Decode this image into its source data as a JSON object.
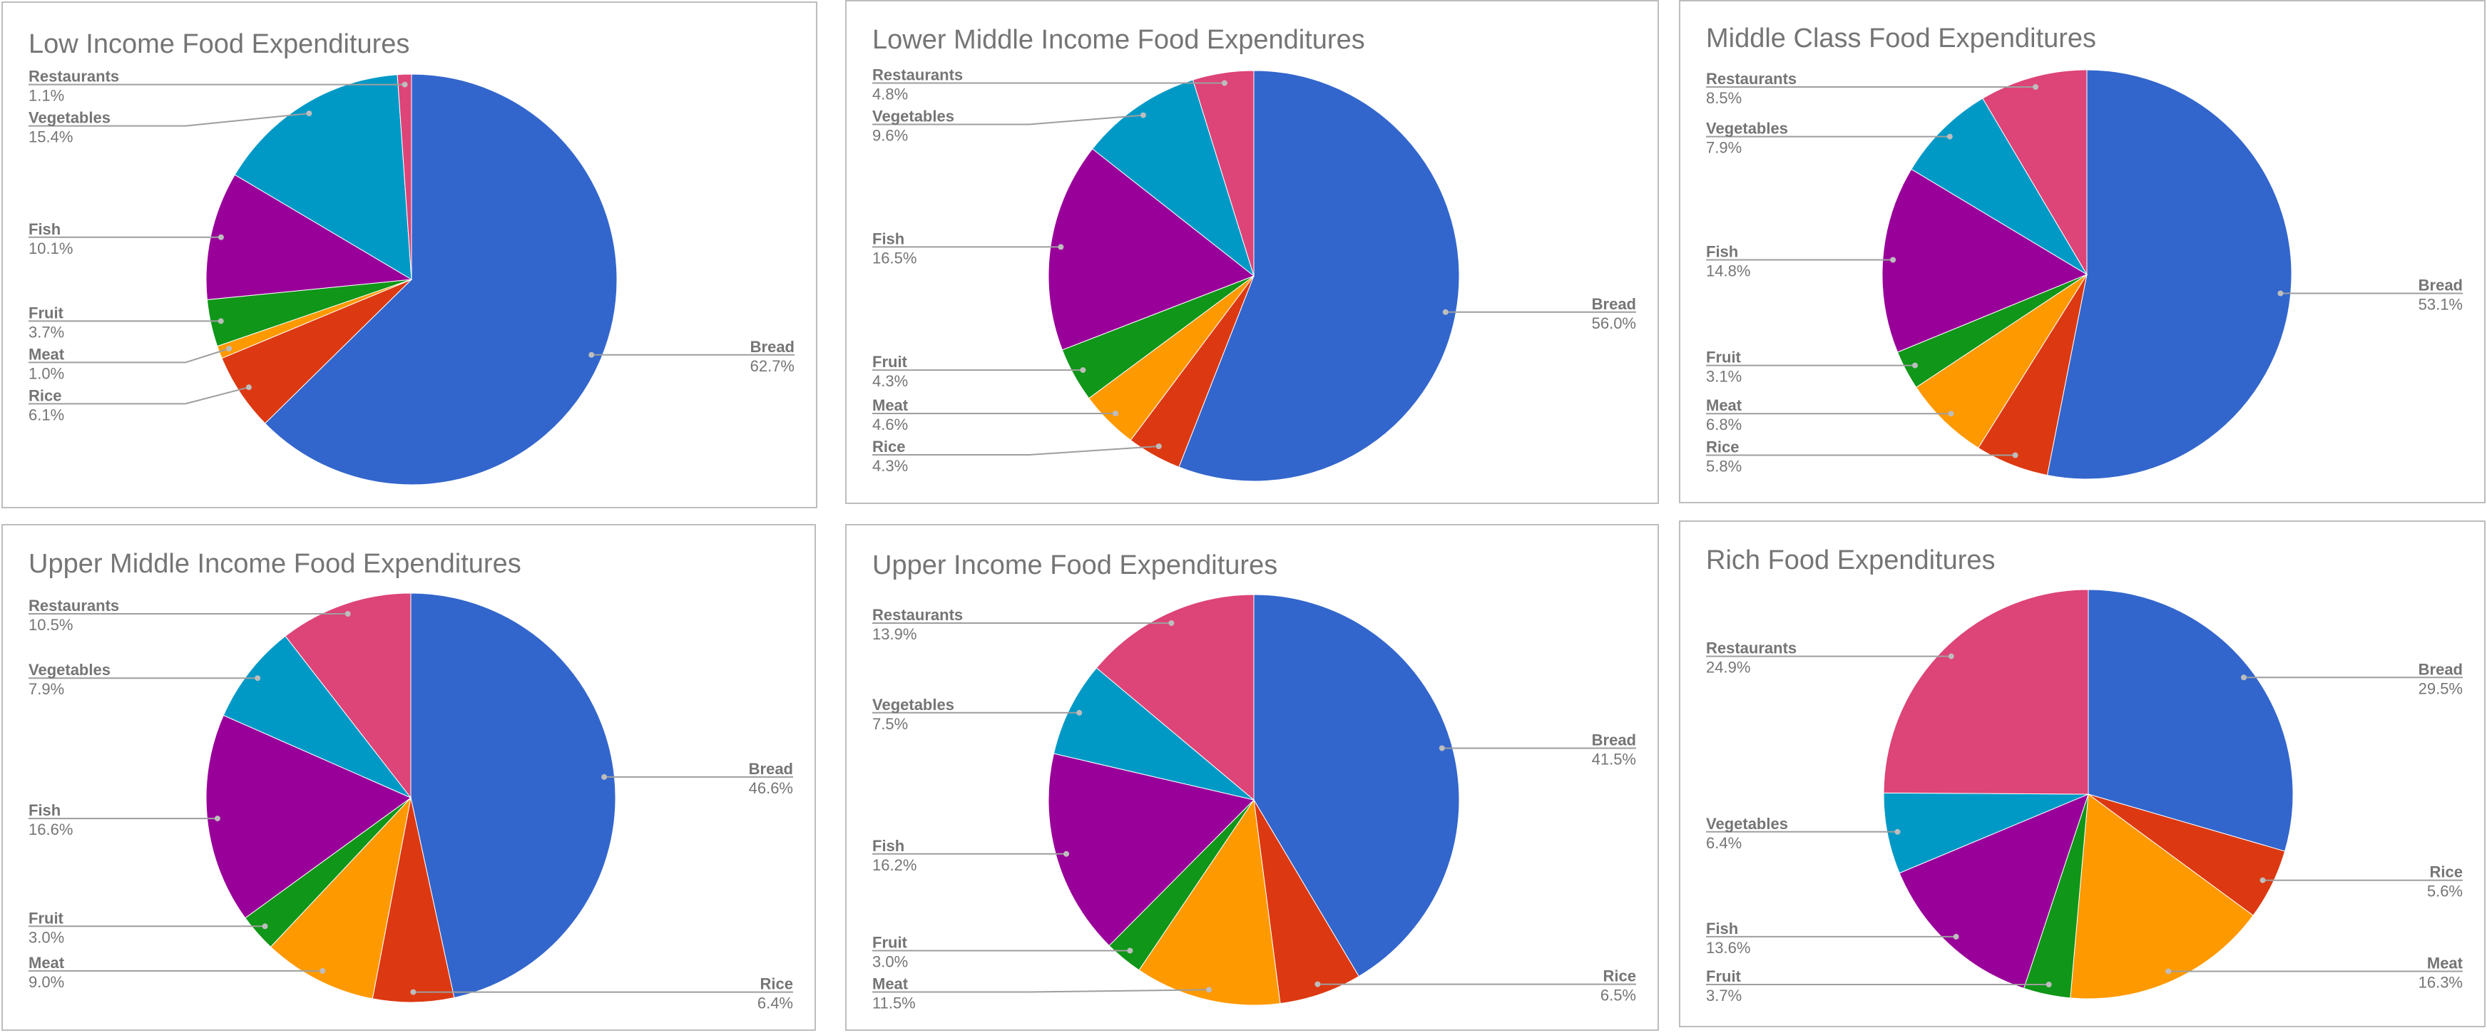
{
  "colors": {
    "Bread": "#3366cc",
    "Rice": "#dc3912",
    "Meat": "#ff9900",
    "Fruit": "#109618",
    "Fish": "#990099",
    "Vegetables": "#0099c6",
    "Restaurants": "#dd4477"
  },
  "chart_data": [
    {
      "type": "pie",
      "title": "Low Income Food Expenditures",
      "slices": [
        {
          "label": "Bread",
          "value": 62.7,
          "value_label": "62.7%"
        },
        {
          "label": "Rice",
          "value": 6.1,
          "value_label": "6.1%"
        },
        {
          "label": "Meat",
          "value": 1.0,
          "value_label": "1.0%"
        },
        {
          "label": "Fruit",
          "value": 3.7,
          "value_label": "3.7%"
        },
        {
          "label": "Fish",
          "value": 10.1,
          "value_label": "10.1%"
        },
        {
          "label": "Vegetables",
          "value": 15.4,
          "value_label": "15.4%"
        },
        {
          "label": "Restaurants",
          "value": 1.1,
          "value_label": "1.1%"
        }
      ]
    },
    {
      "type": "pie",
      "title": "Lower Middle Income Food Expenditures",
      "slices": [
        {
          "label": "Bread",
          "value": 56.0,
          "value_label": "56.0%"
        },
        {
          "label": "Rice",
          "value": 4.3,
          "value_label": "4.3%"
        },
        {
          "label": "Meat",
          "value": 4.6,
          "value_label": "4.6%"
        },
        {
          "label": "Fruit",
          "value": 4.3,
          "value_label": "4.3%"
        },
        {
          "label": "Fish",
          "value": 16.5,
          "value_label": "16.5%"
        },
        {
          "label": "Vegetables",
          "value": 9.6,
          "value_label": "9.6%"
        },
        {
          "label": "Restaurants",
          "value": 4.8,
          "value_label": "4.8%"
        }
      ]
    },
    {
      "type": "pie",
      "title": "Middle Class Food Expenditures",
      "slices": [
        {
          "label": "Bread",
          "value": 53.1,
          "value_label": "53.1%"
        },
        {
          "label": "Rice",
          "value": 5.8,
          "value_label": "5.8%"
        },
        {
          "label": "Meat",
          "value": 6.8,
          "value_label": "6.8%"
        },
        {
          "label": "Fruit",
          "value": 3.1,
          "value_label": "3.1%"
        },
        {
          "label": "Fish",
          "value": 14.8,
          "value_label": "14.8%"
        },
        {
          "label": "Vegetables",
          "value": 7.9,
          "value_label": "7.9%"
        },
        {
          "label": "Restaurants",
          "value": 8.5,
          "value_label": "8.5%"
        }
      ]
    },
    {
      "type": "pie",
      "title": "Upper Middle Income Food Expenditures",
      "slices": [
        {
          "label": "Bread",
          "value": 46.6,
          "value_label": "46.6%"
        },
        {
          "label": "Rice",
          "value": 6.4,
          "value_label": "6.4%"
        },
        {
          "label": "Meat",
          "value": 9.0,
          "value_label": "9.0%"
        },
        {
          "label": "Fruit",
          "value": 3.0,
          "value_label": "3.0%"
        },
        {
          "label": "Fish",
          "value": 16.6,
          "value_label": "16.6%"
        },
        {
          "label": "Vegetables",
          "value": 7.9,
          "value_label": "7.9%"
        },
        {
          "label": "Restaurants",
          "value": 10.5,
          "value_label": "10.5%"
        }
      ]
    },
    {
      "type": "pie",
      "title": "Upper Income Food Expenditures",
      "slices": [
        {
          "label": "Bread",
          "value": 41.5,
          "value_label": "41.5%"
        },
        {
          "label": "Rice",
          "value": 6.5,
          "value_label": "6.5%"
        },
        {
          "label": "Meat",
          "value": 11.5,
          "value_label": "11.5%"
        },
        {
          "label": "Fruit",
          "value": 3.0,
          "value_label": "3.0%"
        },
        {
          "label": "Fish",
          "value": 16.2,
          "value_label": "16.2%"
        },
        {
          "label": "Vegetables",
          "value": 7.5,
          "value_label": "7.5%"
        },
        {
          "label": "Restaurants",
          "value": 13.9,
          "value_label": "13.9%"
        }
      ]
    },
    {
      "type": "pie",
      "title": "Rich Food Expenditures",
      "slices": [
        {
          "label": "Bread",
          "value": 29.5,
          "value_label": "29.5%"
        },
        {
          "label": "Rice",
          "value": 5.6,
          "value_label": "5.6%"
        },
        {
          "label": "Meat",
          "value": 16.3,
          "value_label": "16.3%"
        },
        {
          "label": "Fruit",
          "value": 3.7,
          "value_label": "3.7%"
        },
        {
          "label": "Fish",
          "value": 13.6,
          "value_label": "13.6%"
        },
        {
          "label": "Vegetables",
          "value": 6.4,
          "value_label": "6.4%"
        },
        {
          "label": "Restaurants",
          "value": 24.9,
          "value_label": "24.9%"
        }
      ]
    }
  ]
}
